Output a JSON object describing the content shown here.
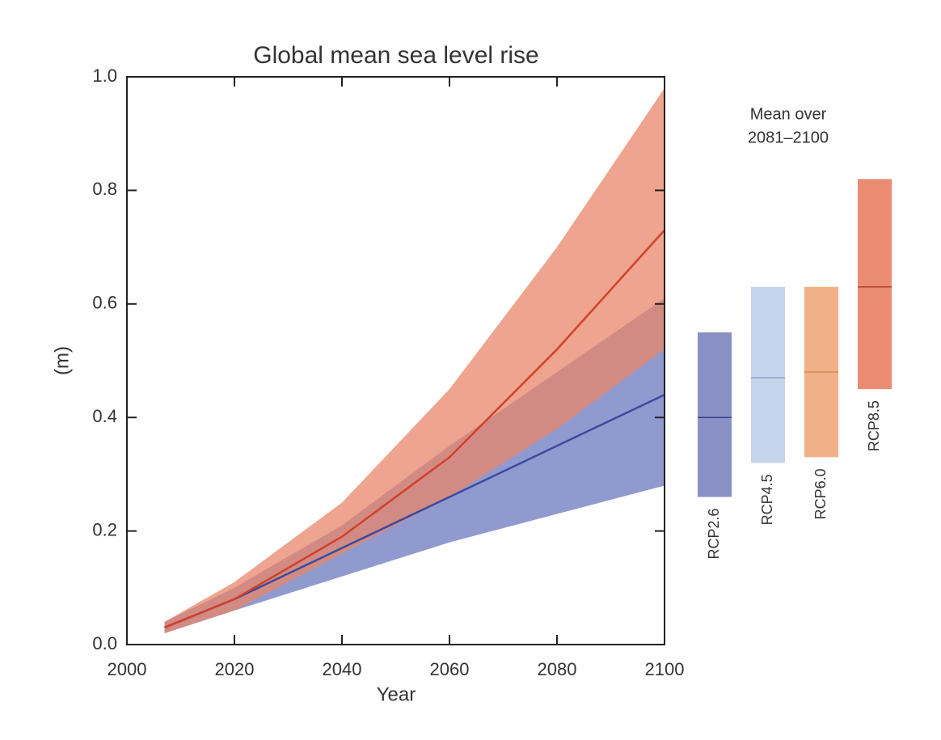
{
  "chart_data": [
    {
      "type": "band-line",
      "title": "Global mean sea level rise",
      "x_label": "Year",
      "y_label": "(m)",
      "x": [
        2007,
        2020,
        2040,
        2060,
        2080,
        2100
      ],
      "series": [
        {
          "color": "#3b4ba0",
          "band_color": "#8b95cb",
          "values": [
            0.03,
            0.08,
            0.17,
            0.26,
            0.35,
            0.44
          ],
          "lower": [
            0.02,
            0.06,
            0.12,
            0.18,
            0.23,
            0.28
          ],
          "upper": [
            0.04,
            0.1,
            0.21,
            0.35,
            0.48,
            0.61
          ]
        },
        {
          "color": "#d2402a",
          "band_color": "#e8866a",
          "values": [
            0.03,
            0.08,
            0.19,
            0.33,
            0.52,
            0.73
          ],
          "lower": [
            0.02,
            0.06,
            0.16,
            0.26,
            0.38,
            0.52
          ],
          "upper": [
            0.04,
            0.11,
            0.25,
            0.45,
            0.7,
            0.98
          ]
        }
      ],
      "xlim": [
        2000,
        2100
      ],
      "ylim": [
        0,
        1
      ],
      "xticks": [
        2000,
        2020,
        2040,
        2060,
        2080,
        2100
      ],
      "yticks": [
        {
          "value": 0,
          "label": "0.0"
        },
        0.2,
        0.4,
        0.6,
        0.8,
        {
          "value": 1,
          "label": "1.0"
        }
      ]
    },
    {
      "type": "range-bar",
      "annotation": [
        "Mean over",
        "2081–2100"
      ],
      "categories": [
        "RCP2.6",
        "RCP4.5",
        "RCP6.0",
        "RCP8.5"
      ],
      "low": [
        0.26,
        0.32,
        0.33,
        0.45
      ],
      "high": [
        0.55,
        0.63,
        0.63,
        0.82
      ],
      "values": [
        0.4,
        0.47,
        0.48,
        0.63
      ],
      "colors": [
        "#8a91c4",
        "#c6d4ea",
        "#f1b187",
        "#e98c72"
      ],
      "line_colors": [
        "#3b3f8c",
        "#8fa2c9",
        "#d98a55",
        "#b0402a"
      ],
      "ylim": [
        0,
        1
      ]
    }
  ]
}
